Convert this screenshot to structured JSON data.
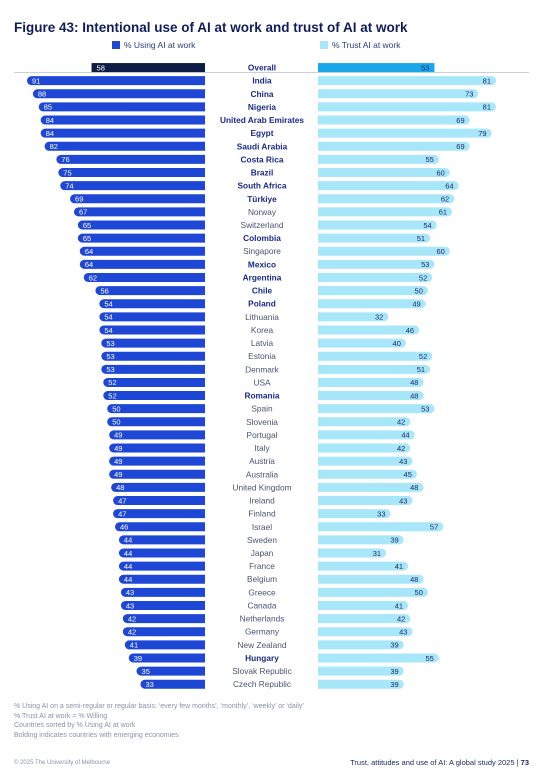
{
  "title": "Figure 43: Intentional use of AI at work and trust of AI at work",
  "colors": {
    "use_bar": "#1f47d6",
    "use_overall": "#0c1c44",
    "trust_bar": "#a8e6fa",
    "trust_overall": "#1aa7ea",
    "label_emerging": "#1b2a8a",
    "label_normal": "#4a5470"
  },
  "chart_data": {
    "type": "bar",
    "layout": "butterfly",
    "title": "Figure 43: Intentional use of AI at work and trust of AI at work",
    "series": [
      {
        "name": "% Using AI at work",
        "direction": "left"
      },
      {
        "name": "% Trust AI at work",
        "direction": "right"
      }
    ],
    "rows": [
      {
        "label": "Overall",
        "use": 58,
        "trust": 53,
        "bold": true,
        "overall": true
      },
      {
        "label": "India",
        "use": 91,
        "trust": 81,
        "bold": true
      },
      {
        "label": "China",
        "use": 88,
        "trust": 73,
        "bold": true
      },
      {
        "label": "Nigeria",
        "use": 85,
        "trust": 81,
        "bold": true
      },
      {
        "label": "United Arab Emirates",
        "use": 84,
        "trust": 69,
        "bold": true
      },
      {
        "label": "Egypt",
        "use": 84,
        "trust": 79,
        "bold": true
      },
      {
        "label": "Saudi Arabia",
        "use": 82,
        "trust": 69,
        "bold": true
      },
      {
        "label": "Costa Rica",
        "use": 76,
        "trust": 55,
        "bold": true
      },
      {
        "label": "Brazil",
        "use": 75,
        "trust": 60,
        "bold": true
      },
      {
        "label": "South Africa",
        "use": 74,
        "trust": 64,
        "bold": true
      },
      {
        "label": "Türkiye",
        "use": 69,
        "trust": 62,
        "bold": true
      },
      {
        "label": "Norway",
        "use": 67,
        "trust": 61,
        "bold": false
      },
      {
        "label": "Switzerland",
        "use": 65,
        "trust": 54,
        "bold": false
      },
      {
        "label": "Colombia",
        "use": 65,
        "trust": 51,
        "bold": true
      },
      {
        "label": "Singapore",
        "use": 64,
        "trust": 60,
        "bold": false
      },
      {
        "label": "Mexico",
        "use": 64,
        "trust": 53,
        "bold": true
      },
      {
        "label": "Argentina",
        "use": 62,
        "trust": 52,
        "bold": true
      },
      {
        "label": "Chile",
        "use": 56,
        "trust": 50,
        "bold": true
      },
      {
        "label": "Poland",
        "use": 54,
        "trust": 49,
        "bold": true
      },
      {
        "label": "Lithuania",
        "use": 54,
        "trust": 32,
        "bold": false
      },
      {
        "label": "Korea",
        "use": 54,
        "trust": 46,
        "bold": false
      },
      {
        "label": "Latvia",
        "use": 53,
        "trust": 40,
        "bold": false
      },
      {
        "label": "Estonia",
        "use": 53,
        "trust": 52,
        "bold": false
      },
      {
        "label": "Denmark",
        "use": 53,
        "trust": 51,
        "bold": false
      },
      {
        "label": "USA",
        "use": 52,
        "trust": 48,
        "bold": false
      },
      {
        "label": "Romania",
        "use": 52,
        "trust": 48,
        "bold": true
      },
      {
        "label": "Spain",
        "use": 50,
        "trust": 53,
        "bold": false
      },
      {
        "label": "Slovenia",
        "use": 50,
        "trust": 42,
        "bold": false
      },
      {
        "label": "Portugal",
        "use": 49,
        "trust": 44,
        "bold": false
      },
      {
        "label": "Italy",
        "use": 49,
        "trust": 42,
        "bold": false
      },
      {
        "label": "Austria",
        "use": 49,
        "trust": 43,
        "bold": false
      },
      {
        "label": "Australia",
        "use": 49,
        "trust": 45,
        "bold": false
      },
      {
        "label": "United Kingdom",
        "use": 48,
        "trust": 48,
        "bold": false
      },
      {
        "label": "Ireland",
        "use": 47,
        "trust": 43,
        "bold": false
      },
      {
        "label": "Finland",
        "use": 47,
        "trust": 33,
        "bold": false
      },
      {
        "label": "Israel",
        "use": 46,
        "trust": 57,
        "bold": false
      },
      {
        "label": "Sweden",
        "use": 44,
        "trust": 39,
        "bold": false
      },
      {
        "label": "Japan",
        "use": 44,
        "trust": 31,
        "bold": false
      },
      {
        "label": "France",
        "use": 44,
        "trust": 41,
        "bold": false
      },
      {
        "label": "Belgium",
        "use": 44,
        "trust": 48,
        "bold": false
      },
      {
        "label": "Greece",
        "use": 43,
        "trust": 50,
        "bold": false
      },
      {
        "label": "Canada",
        "use": 43,
        "trust": 41,
        "bold": false
      },
      {
        "label": "Netherlands",
        "use": 42,
        "trust": 42,
        "bold": false
      },
      {
        "label": "Germany",
        "use": 42,
        "trust": 43,
        "bold": false
      },
      {
        "label": "New Zealand",
        "use": 41,
        "trust": 39,
        "bold": false
      },
      {
        "label": "Hungary",
        "use": 39,
        "trust": 55,
        "bold": true
      },
      {
        "label": "Slovak Republic",
        "use": 35,
        "trust": 39,
        "bold": false
      },
      {
        "label": "Czech Republic",
        "use": 33,
        "trust": 39,
        "bold": false
      }
    ]
  },
  "footnotes": [
    "% Using AI on a semi-regular or regular basis: ‘every few months’, ‘monthly’, ‘weekly’ or ‘daily’",
    "% Trust AI at work = % Willing",
    "Countries sorted by % Using AI at work",
    "Bolding indicates countries with emerging economies"
  ],
  "footer": {
    "copyright": "© 2025 The University of Melbourne",
    "report": "Trust, attitudes and use of AI: A global study 2025 |",
    "page": "73"
  }
}
